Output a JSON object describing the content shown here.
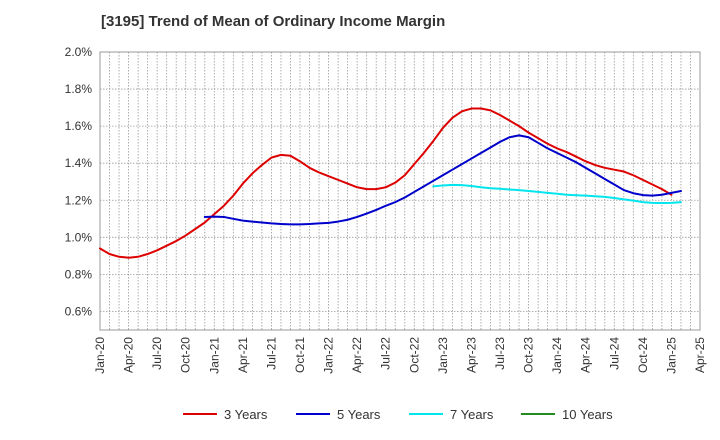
{
  "title": "[3195]  Trend of Mean of Ordinary Income Margin",
  "chart_data": {
    "type": "line",
    "title": "[3195]  Trend of Mean of Ordinary Income Margin",
    "xlabel": "",
    "ylabel": "",
    "ylim": [
      0.5,
      2.0
    ],
    "y_ticks": [
      0.6,
      0.8,
      1.0,
      1.2,
      1.4,
      1.6,
      1.8,
      2.0
    ],
    "y_tick_labels": [
      "0.6%",
      "0.8%",
      "1.0%",
      "1.2%",
      "1.4%",
      "1.6%",
      "1.8%",
      "2.0%"
    ],
    "x_range": [
      "Jan-20",
      "Apr-25"
    ],
    "x_tick_labels": [
      "Jan-20",
      "Apr-20",
      "Jul-20",
      "Oct-20",
      "Jan-21",
      "Apr-21",
      "Jul-21",
      "Oct-21",
      "Jan-22",
      "Apr-22",
      "Jul-22",
      "Oct-22",
      "Jan-23",
      "Apr-23",
      "Jul-23",
      "Oct-23",
      "Jan-24",
      "Apr-24",
      "Jul-24",
      "Oct-24",
      "Jan-25",
      "Apr-25"
    ],
    "grid": true,
    "legend_position": "bottom",
    "series": [
      {
        "name": "3 Years",
        "color": "#dd0000",
        "points": [
          [
            "Jan-20",
            0.94
          ],
          [
            "Feb-20",
            0.91
          ],
          [
            "Mar-20",
            0.895
          ],
          [
            "Apr-20",
            0.89
          ],
          [
            "May-20",
            0.895
          ],
          [
            "Jun-20",
            0.91
          ],
          [
            "Jul-20",
            0.93
          ],
          [
            "Aug-20",
            0.955
          ],
          [
            "Sep-20",
            0.98
          ],
          [
            "Oct-20",
            1.01
          ],
          [
            "Nov-20",
            1.045
          ],
          [
            "Dec-20",
            1.08
          ],
          [
            "Jan-21",
            1.125
          ],
          [
            "Feb-21",
            1.17
          ],
          [
            "Mar-21",
            1.225
          ],
          [
            "Apr-21",
            1.29
          ],
          [
            "May-21",
            1.345
          ],
          [
            "Jun-21",
            1.39
          ],
          [
            "Jul-21",
            1.43
          ],
          [
            "Aug-21",
            1.445
          ],
          [
            "Sep-21",
            1.44
          ],
          [
            "Oct-21",
            1.41
          ],
          [
            "Nov-21",
            1.375
          ],
          [
            "Dec-21",
            1.35
          ],
          [
            "Jan-22",
            1.33
          ],
          [
            "Feb-22",
            1.31
          ],
          [
            "Mar-22",
            1.29
          ],
          [
            "Apr-22",
            1.27
          ],
          [
            "May-22",
            1.26
          ],
          [
            "Jun-22",
            1.26
          ],
          [
            "Jul-22",
            1.27
          ],
          [
            "Aug-22",
            1.295
          ],
          [
            "Sep-22",
            1.335
          ],
          [
            "Oct-22",
            1.395
          ],
          [
            "Nov-22",
            1.455
          ],
          [
            "Dec-22",
            1.52
          ],
          [
            "Jan-23",
            1.59
          ],
          [
            "Feb-23",
            1.645
          ],
          [
            "Mar-23",
            1.68
          ],
          [
            "Apr-23",
            1.695
          ],
          [
            "May-23",
            1.695
          ],
          [
            "Jun-23",
            1.685
          ],
          [
            "Jul-23",
            1.66
          ],
          [
            "Aug-23",
            1.63
          ],
          [
            "Sep-23",
            1.6
          ],
          [
            "Oct-23",
            1.565
          ],
          [
            "Nov-23",
            1.535
          ],
          [
            "Dec-23",
            1.505
          ],
          [
            "Jan-24",
            1.48
          ],
          [
            "Feb-24",
            1.46
          ],
          [
            "Mar-24",
            1.435
          ],
          [
            "Apr-24",
            1.41
          ],
          [
            "May-24",
            1.39
          ],
          [
            "Jun-24",
            1.375
          ],
          [
            "Jul-24",
            1.365
          ],
          [
            "Aug-24",
            1.355
          ],
          [
            "Sep-24",
            1.335
          ],
          [
            "Oct-24",
            1.31
          ],
          [
            "Nov-24",
            1.285
          ],
          [
            "Dec-24",
            1.26
          ],
          [
            "Jan-25",
            1.23
          ]
        ]
      },
      {
        "name": "5 Years",
        "color": "#0000cc",
        "points": [
          [
            "Dec-20",
            1.11
          ],
          [
            "Jan-21",
            1.112
          ],
          [
            "Feb-21",
            1.11
          ],
          [
            "Mar-21",
            1.1
          ],
          [
            "Apr-21",
            1.09
          ],
          [
            "May-21",
            1.085
          ],
          [
            "Jun-21",
            1.08
          ],
          [
            "Jul-21",
            1.075
          ],
          [
            "Aug-21",
            1.072
          ],
          [
            "Sep-21",
            1.07
          ],
          [
            "Oct-21",
            1.07
          ],
          [
            "Nov-21",
            1.072
          ],
          [
            "Dec-21",
            1.075
          ],
          [
            "Jan-22",
            1.078
          ],
          [
            "Feb-22",
            1.085
          ],
          [
            "Mar-22",
            1.095
          ],
          [
            "Apr-22",
            1.11
          ],
          [
            "May-22",
            1.128
          ],
          [
            "Jun-22",
            1.148
          ],
          [
            "Jul-22",
            1.17
          ],
          [
            "Aug-22",
            1.19
          ],
          [
            "Sep-22",
            1.215
          ],
          [
            "Oct-22",
            1.245
          ],
          [
            "Nov-22",
            1.275
          ],
          [
            "Dec-22",
            1.305
          ],
          [
            "Jan-23",
            1.335
          ],
          [
            "Feb-23",
            1.365
          ],
          [
            "Mar-23",
            1.395
          ],
          [
            "Apr-23",
            1.425
          ],
          [
            "May-23",
            1.455
          ],
          [
            "Jun-23",
            1.485
          ],
          [
            "Jul-23",
            1.515
          ],
          [
            "Aug-23",
            1.54
          ],
          [
            "Sep-23",
            1.55
          ],
          [
            "Oct-23",
            1.54
          ],
          [
            "Nov-23",
            1.51
          ],
          [
            "Dec-23",
            1.48
          ],
          [
            "Jan-24",
            1.455
          ],
          [
            "Feb-24",
            1.43
          ],
          [
            "Mar-24",
            1.405
          ],
          [
            "Apr-24",
            1.375
          ],
          [
            "May-24",
            1.345
          ],
          [
            "Jun-24",
            1.315
          ],
          [
            "Jul-24",
            1.285
          ],
          [
            "Aug-24",
            1.255
          ],
          [
            "Sep-24",
            1.238
          ],
          [
            "Oct-24",
            1.228
          ],
          [
            "Nov-24",
            1.225
          ],
          [
            "Dec-24",
            1.23
          ],
          [
            "Jan-25",
            1.24
          ],
          [
            "Feb-25",
            1.25
          ]
        ]
      },
      {
        "name": "7 Years",
        "color": "#00e5ee",
        "points": [
          [
            "Dec-22",
            1.275
          ],
          [
            "Jan-23",
            1.28
          ],
          [
            "Feb-23",
            1.283
          ],
          [
            "Mar-23",
            1.282
          ],
          [
            "Apr-23",
            1.277
          ],
          [
            "May-23",
            1.27
          ],
          [
            "Jun-23",
            1.265
          ],
          [
            "Jul-23",
            1.262
          ],
          [
            "Aug-23",
            1.258
          ],
          [
            "Sep-23",
            1.255
          ],
          [
            "Oct-23",
            1.25
          ],
          [
            "Nov-23",
            1.245
          ],
          [
            "Dec-23",
            1.24
          ],
          [
            "Jan-24",
            1.235
          ],
          [
            "Feb-24",
            1.23
          ],
          [
            "Mar-24",
            1.227
          ],
          [
            "Apr-24",
            1.225
          ],
          [
            "May-24",
            1.222
          ],
          [
            "Jun-24",
            1.218
          ],
          [
            "Jul-24",
            1.212
          ],
          [
            "Aug-24",
            1.205
          ],
          [
            "Sep-24",
            1.198
          ],
          [
            "Oct-24",
            1.19
          ],
          [
            "Nov-24",
            1.186
          ],
          [
            "Dec-24",
            1.185
          ],
          [
            "Jan-25",
            1.186
          ],
          [
            "Feb-25",
            1.19
          ]
        ]
      },
      {
        "name": "10 Years",
        "color": "#228b22",
        "points": []
      }
    ]
  }
}
